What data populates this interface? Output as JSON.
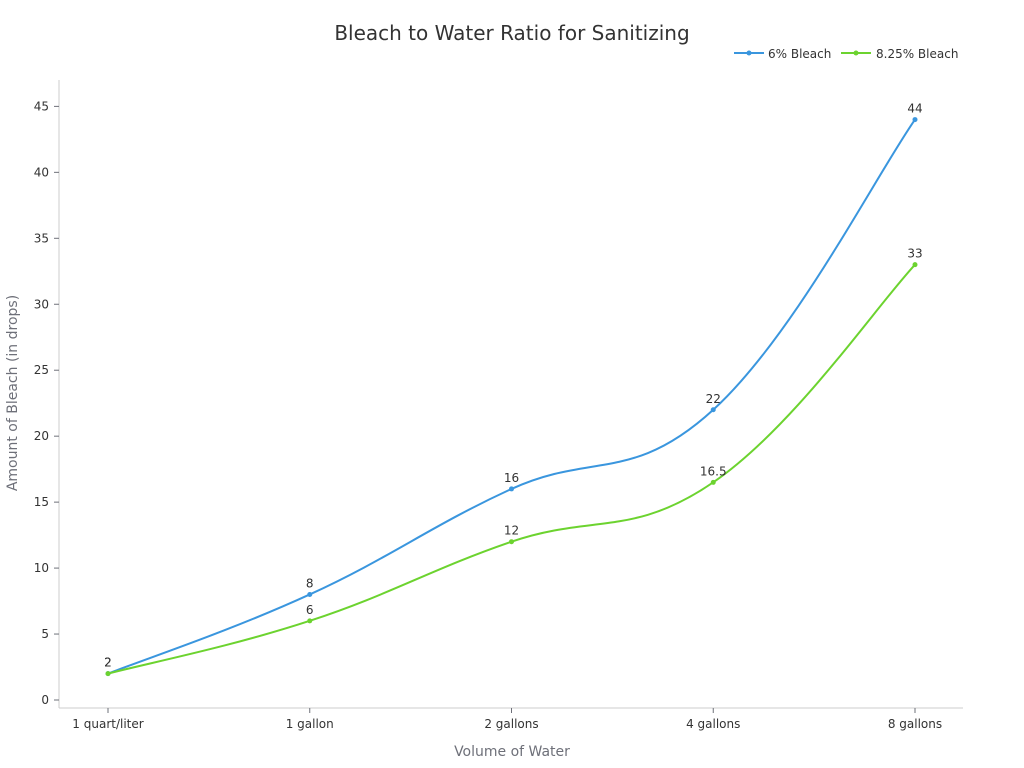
{
  "chart_data": {
    "type": "line",
    "title": "Bleach to Water Ratio for Sanitizing",
    "xlabel": "Volume of Water",
    "ylabel": "Amount of Bleach (in drops)",
    "categories": [
      "1 quart/liter",
      "1 gallon",
      "2 gallons",
      "4 gallons",
      "8 gallons"
    ],
    "ylim": [
      0,
      47
    ],
    "yticks": [
      0,
      5,
      10,
      15,
      20,
      25,
      30,
      35,
      40,
      45
    ],
    "grid": false,
    "legend_position": "top-right",
    "series": [
      {
        "name": "6% Bleach",
        "values": [
          2,
          8,
          16,
          22,
          44
        ],
        "labels": [
          "2",
          "8",
          "16",
          "22",
          "44"
        ],
        "color": "#3a96de"
      },
      {
        "name": "8.25% Bleach",
        "values": [
          2,
          6,
          12,
          16.5,
          33
        ],
        "labels": [
          "2",
          "6",
          "12",
          "16.5",
          "33"
        ],
        "color": "#6cd32f"
      }
    ]
  }
}
